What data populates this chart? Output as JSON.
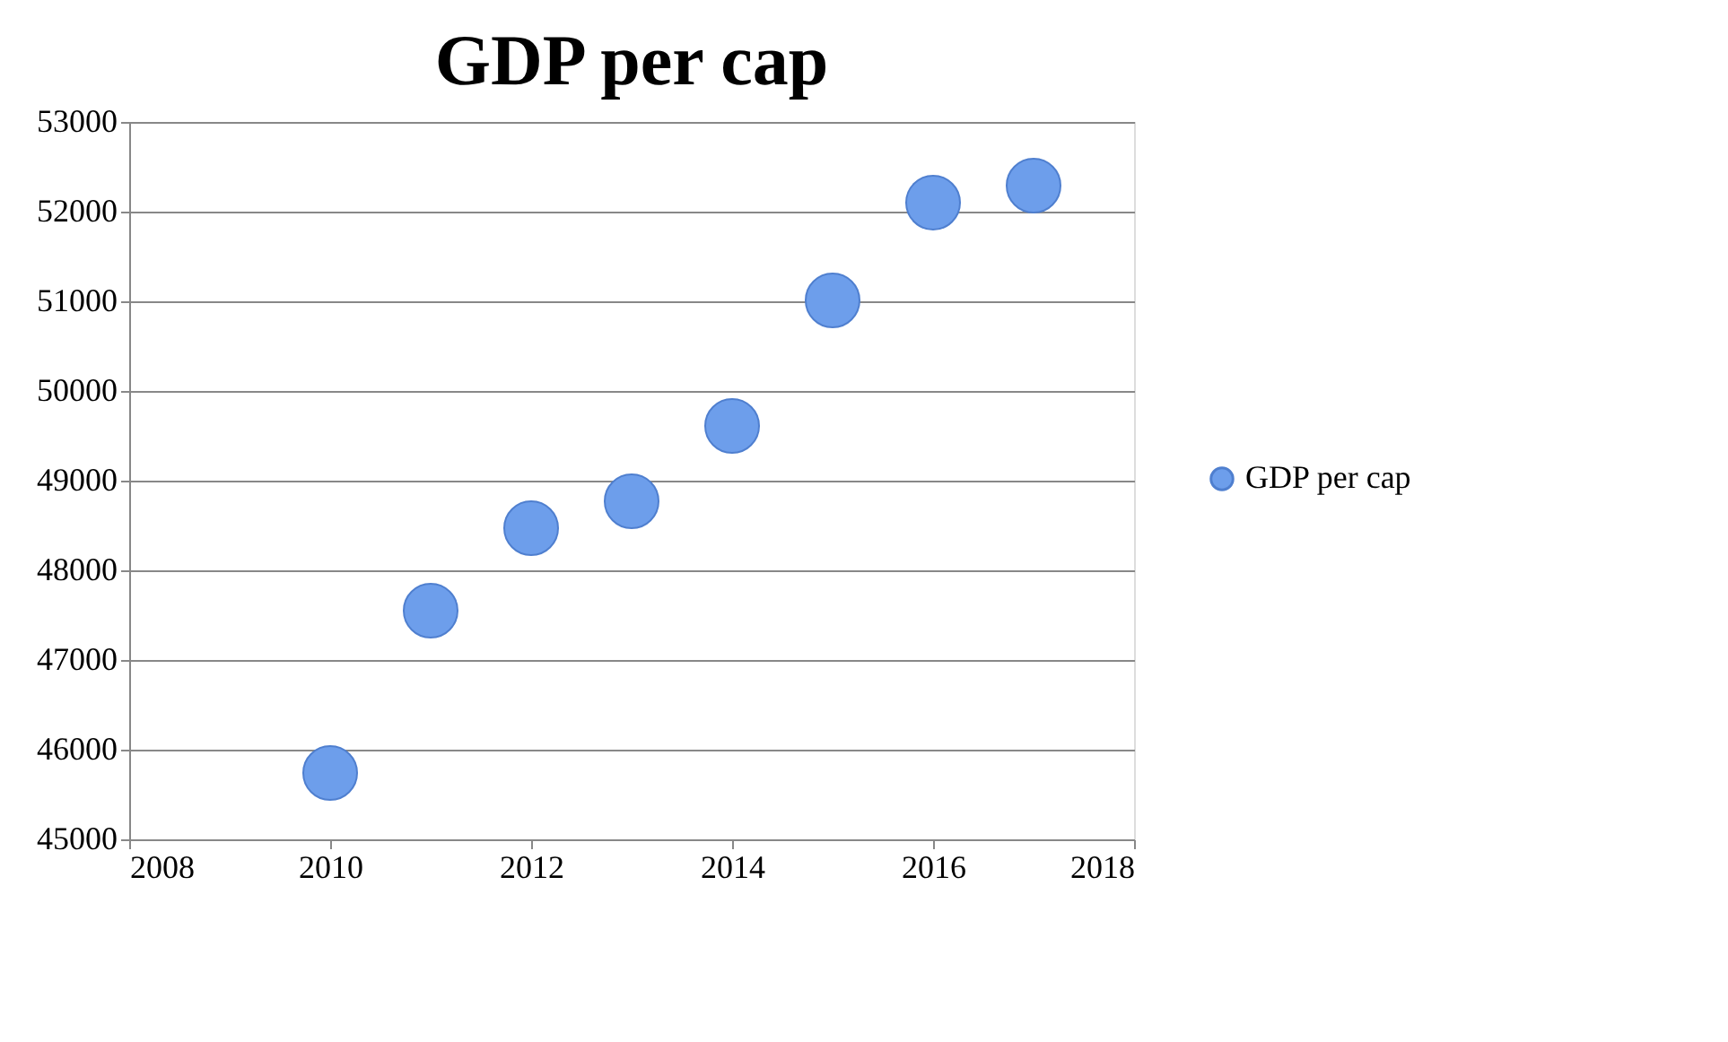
{
  "chart_data": {
    "type": "scatter",
    "title": "GDP per cap",
    "x": [
      2010,
      2011,
      2012,
      2013,
      2014,
      2015,
      2016,
      2017
    ],
    "series": [
      {
        "name": "GDP per cap",
        "color": "#6d9eeb",
        "values": [
          45740,
          47550,
          48470,
          48770,
          49610,
          51010,
          52100,
          52290
        ]
      }
    ],
    "xlim": [
      2008,
      2018
    ],
    "xticks": [
      2008,
      2010,
      2012,
      2014,
      2016,
      2018
    ],
    "ylim": [
      45000,
      53000
    ],
    "yticks": [
      45000,
      46000,
      47000,
      48000,
      49000,
      50000,
      51000,
      52000,
      53000
    ],
    "grid": "y",
    "legend": "right",
    "marker": "circle"
  }
}
